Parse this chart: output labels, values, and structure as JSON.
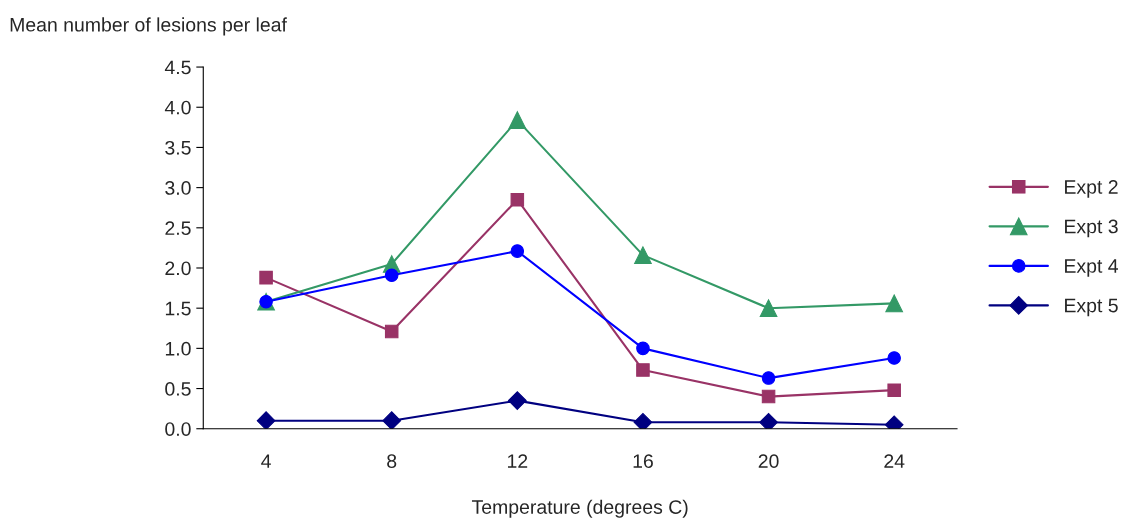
{
  "chart_data": {
    "type": "line",
    "xlabel": "Temperature (degrees C)",
    "ylabel": "Mean number of lesions per leaf",
    "categories": [
      "4",
      "8",
      "12",
      "16",
      "20",
      "24"
    ],
    "series": [
      {
        "name": "Expt 2",
        "color": "#993366",
        "marker": "square",
        "values": [
          1.88,
          1.21,
          2.85,
          0.73,
          0.4,
          0.48
        ]
      },
      {
        "name": "Expt 3",
        "color": "#339966",
        "marker": "triangle",
        "values": [
          1.58,
          2.05,
          3.84,
          2.16,
          1.5,
          1.56
        ]
      },
      {
        "name": "Expt 4",
        "color": "#0000ff",
        "marker": "circle",
        "values": [
          1.58,
          1.91,
          2.21,
          1.0,
          0.63,
          0.88
        ]
      },
      {
        "name": "Expt 5",
        "color": "#000080",
        "marker": "diamond",
        "values": [
          0.1,
          0.1,
          0.35,
          0.08,
          0.08,
          0.05
        ]
      }
    ],
    "ylim": [
      0,
      4.5
    ],
    "yticks": [
      {
        "value": 0,
        "label": "0.0"
      },
      0.5,
      {
        "value": 1,
        "label": "1.0"
      },
      1.5,
      {
        "value": 2,
        "label": "2.0"
      },
      2.5,
      {
        "value": 3,
        "label": "3.0"
      },
      3.5,
      {
        "value": 4,
        "label": "4.0"
      },
      4.5
    ],
    "grid": false,
    "legend": "right",
    "line_style": "solid"
  }
}
